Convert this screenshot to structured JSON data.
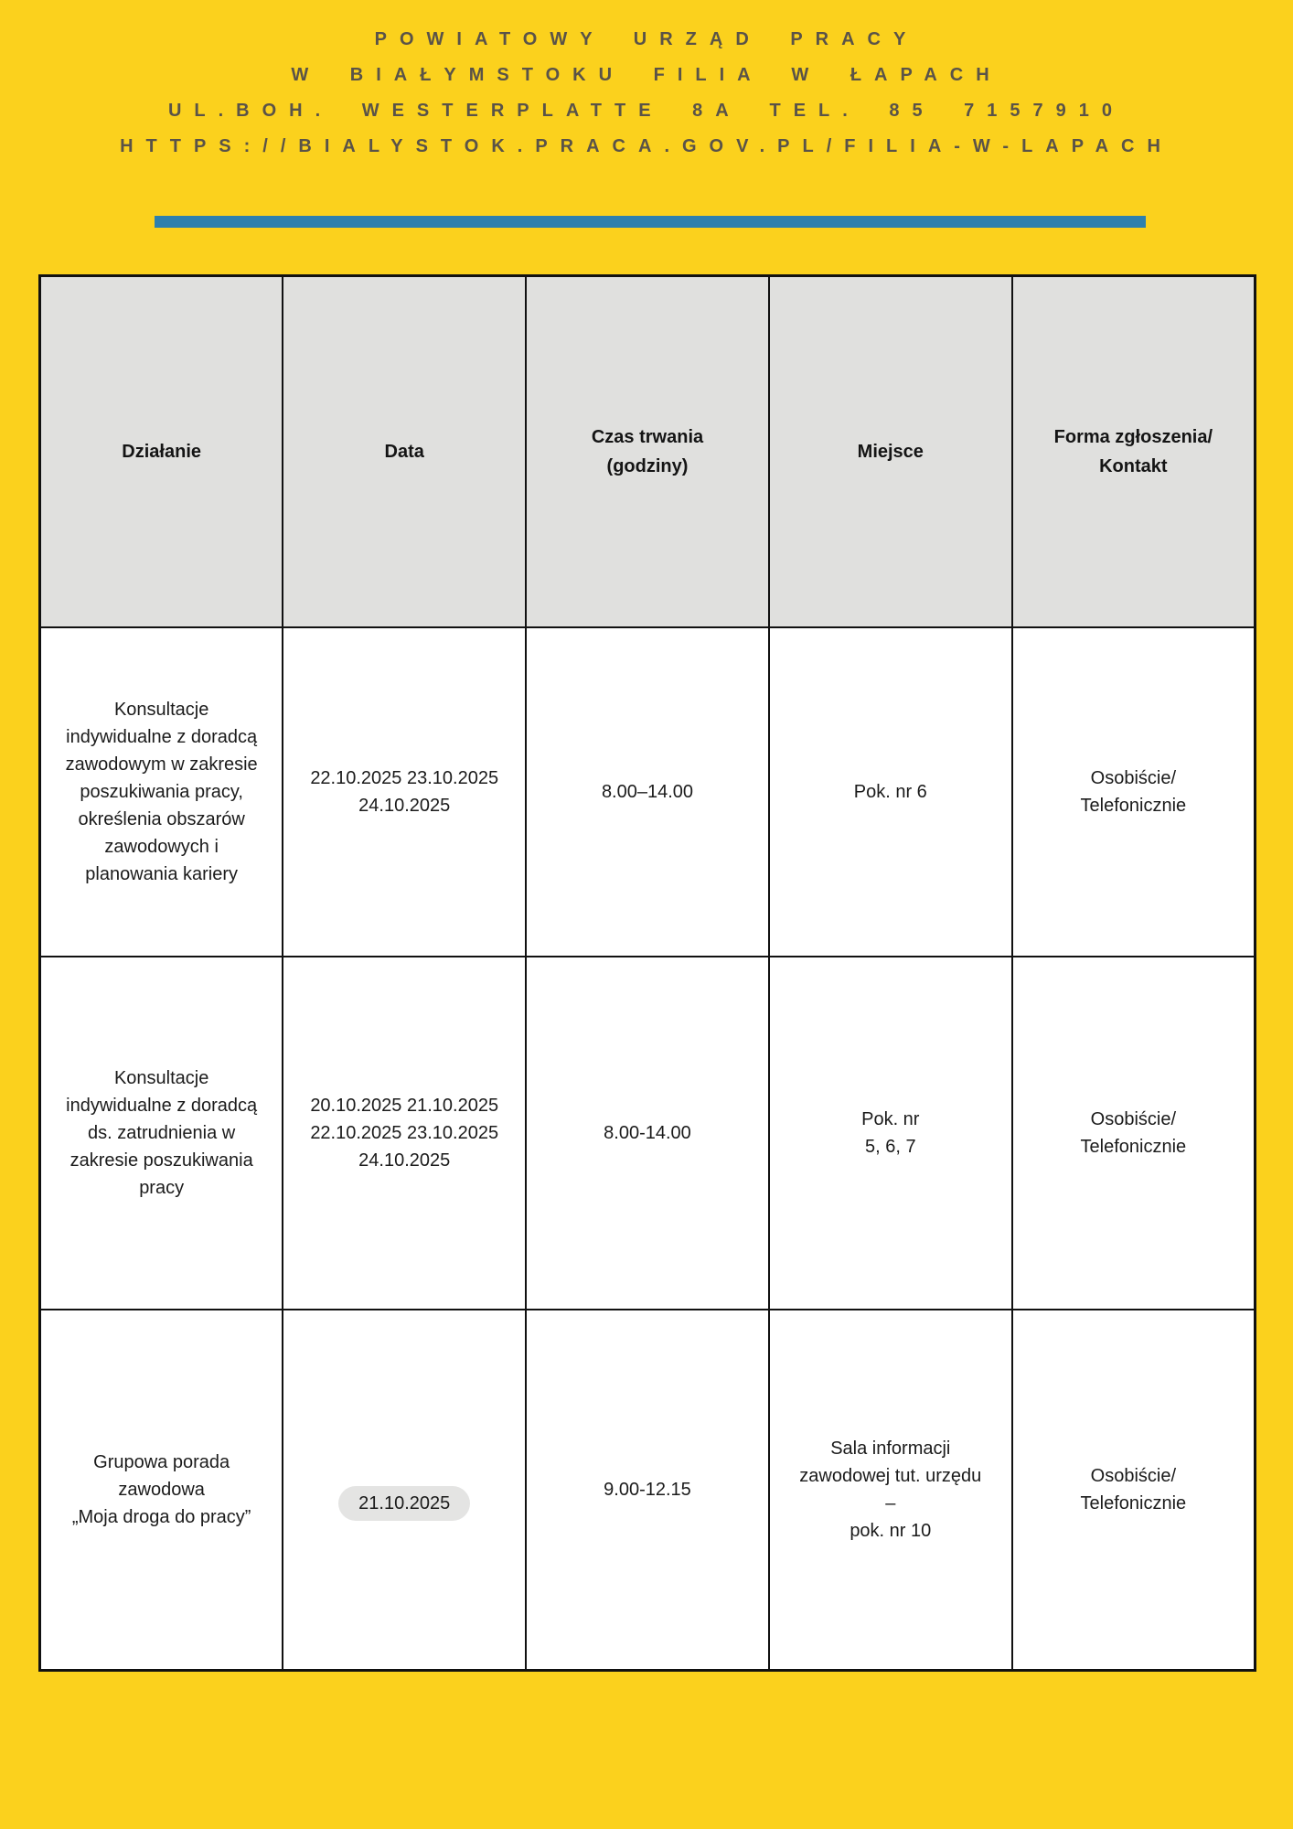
{
  "colors": {
    "page_background": "#FBD11D",
    "accent_bar": "#2E80AD",
    "letterhead_text": "#5A5348",
    "table_header_background": "#E0E0DE",
    "table_border": "#111111",
    "cell_background": "#FFFFFF",
    "highlight_pill_background": "#E4E4E3"
  },
  "letterhead": {
    "lines": [
      "POWIATOWY URZĄD PRACY",
      "W BIAŁYMSTOKU FILIA W ŁAPACH",
      "UL.BOH. WESTERPLATTE 8A TEL. 85 7157910",
      "HTTPS://BIALYSTOK.PRACA.GOV.PL/FILIA-W-LAPACH"
    ]
  },
  "table": {
    "headers": {
      "dzialanie": "Działanie",
      "data": "Data",
      "czas": "Czas trwania\n(godziny)",
      "miejsce": "Miejsce",
      "forma": "Forma zgłoszenia/\nKontakt"
    },
    "rows": [
      {
        "dzialanie": "Konsultacje\nindywidualne z doradcą\nzawodowym w zakresie\nposzukiwania pracy,\nokreślenia obszarów\nzawodowych i\nplanowania kariery",
        "data": "22.10.2025 23.10.2025\n24.10.2025",
        "czas": "8.00–14.00",
        "miejsce": "Pok. nr 6",
        "forma": "Osobiście/\nTelefonicznie"
      },
      {
        "dzialanie": "Konsultacje\nindywidualne z doradcą\nds. zatrudnienia w\nzakresie poszukiwania\npracy",
        "data": "20.10.2025 21.10.2025\n22.10.2025 23.10.2025\n24.10.2025",
        "czas": "8.00-14.00",
        "miejsce": "Pok. nr\n5, 6, 7",
        "forma": "Osobiście/\nTelefonicznie"
      },
      {
        "dzialanie": "Grupowa porada\nzawodowa\n„Moja droga do pracy”",
        "data": "21.10.2025",
        "czas": "9.00-12.15",
        "miejsce": "Sala informacji\nzawodowej tut. urzędu\n–\npok. nr 10",
        "forma": "Osobiście/\nTelefonicznie"
      }
    ]
  }
}
